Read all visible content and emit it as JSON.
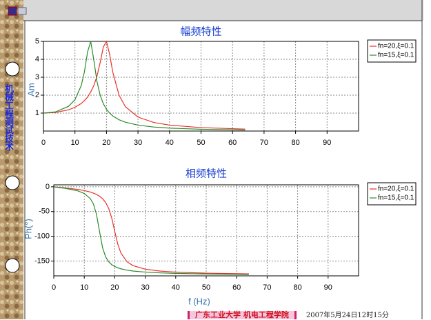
{
  "side_title": "机械工程测试技术",
  "footer": {
    "school": "广东工业大学",
    "college": "机电工程学院",
    "timestamp": "2007年5月24日12时15分"
  },
  "chart_data": [
    {
      "type": "line",
      "title": "幅频特性",
      "ylabel": "Am",
      "x": [
        0,
        4,
        8,
        10,
        12,
        13,
        14,
        15,
        16,
        17,
        18,
        19,
        20,
        21,
        22,
        24,
        26,
        30,
        35,
        40,
        50,
        64
      ],
      "series": [
        {
          "name": "fn=20,ξ=0.1",
          "color": "#e8302a",
          "values": [
            1,
            1.041,
            1.185,
            1.322,
            1.536,
            1.7,
            1.891,
            2.18,
            2.538,
            3.073,
            3.821,
            4.682,
            5,
            4.279,
            3.288,
            1.995,
            1.356,
            0.778,
            0.478,
            0.33,
            0.19,
            0.108
          ]
        },
        {
          "name": "fn=15,ξ=0.1",
          "color": "#2a8a2a",
          "values": [
            1,
            1.075,
            1.382,
            1.75,
            2.538,
            3.297,
            4.41,
            5,
            3.937,
            2.749,
            1.995,
            1.526,
            1.216,
            1.0,
            0.842,
            0.628,
            0.492,
            0.33,
            0.224,
            0.163,
            0.099,
            0.058
          ]
        }
      ],
      "xlim": [
        0,
        100
      ],
      "xticks": [
        0,
        10,
        20,
        30,
        40,
        50,
        60,
        70,
        80,
        90
      ],
      "ylim": [
        0,
        5
      ],
      "yticks": [
        1,
        2,
        3,
        4,
        5
      ],
      "grid": true,
      "legend": "right"
    },
    {
      "type": "line",
      "title": "相频特性",
      "ylabel": "Ph(°)",
      "xlabel": "f (Hz)",
      "x": [
        0,
        4,
        8,
        10,
        12,
        13,
        14,
        15,
        16,
        17,
        18,
        19,
        20,
        21,
        22,
        24,
        26,
        30,
        35,
        40,
        50,
        64
      ],
      "series": [
        {
          "name": "fn=20,ξ=0.1",
          "color": "#e8302a",
          "values": [
            0,
            -2.4,
            -5.4,
            -7.6,
            -10.6,
            -12.8,
            -15.4,
            -19.0,
            -24.0,
            -31.5,
            -43.5,
            -62.8,
            -90,
            -116.0,
            -133.7,
            -151.4,
            -159.3,
            -166.5,
            -170.4,
            -172.4,
            -174.6,
            -176.0
          ]
        },
        {
          "name": "fn=15,ξ=0.1",
          "color": "#2a8a2a",
          "values": [
            0,
            -3.3,
            -8.5,
            -13.5,
            -24.0,
            -34.8,
            -55.4,
            -90,
            -122.9,
            -141.4,
            -151.4,
            -157.3,
            -161.1,
            -163.7,
            -165.7,
            -168.4,
            -170.2,
            -172.4,
            -174.0,
            -175.0,
            -176.2,
            -177.2
          ]
        }
      ],
      "xlim": [
        0,
        100
      ],
      "xticks": [
        0,
        10,
        20,
        30,
        40,
        50,
        60,
        70,
        80,
        90
      ],
      "ylim": [
        -180,
        4
      ],
      "yticks": [
        0,
        -50,
        -100,
        -150
      ],
      "grid": true,
      "legend": "right"
    }
  ]
}
